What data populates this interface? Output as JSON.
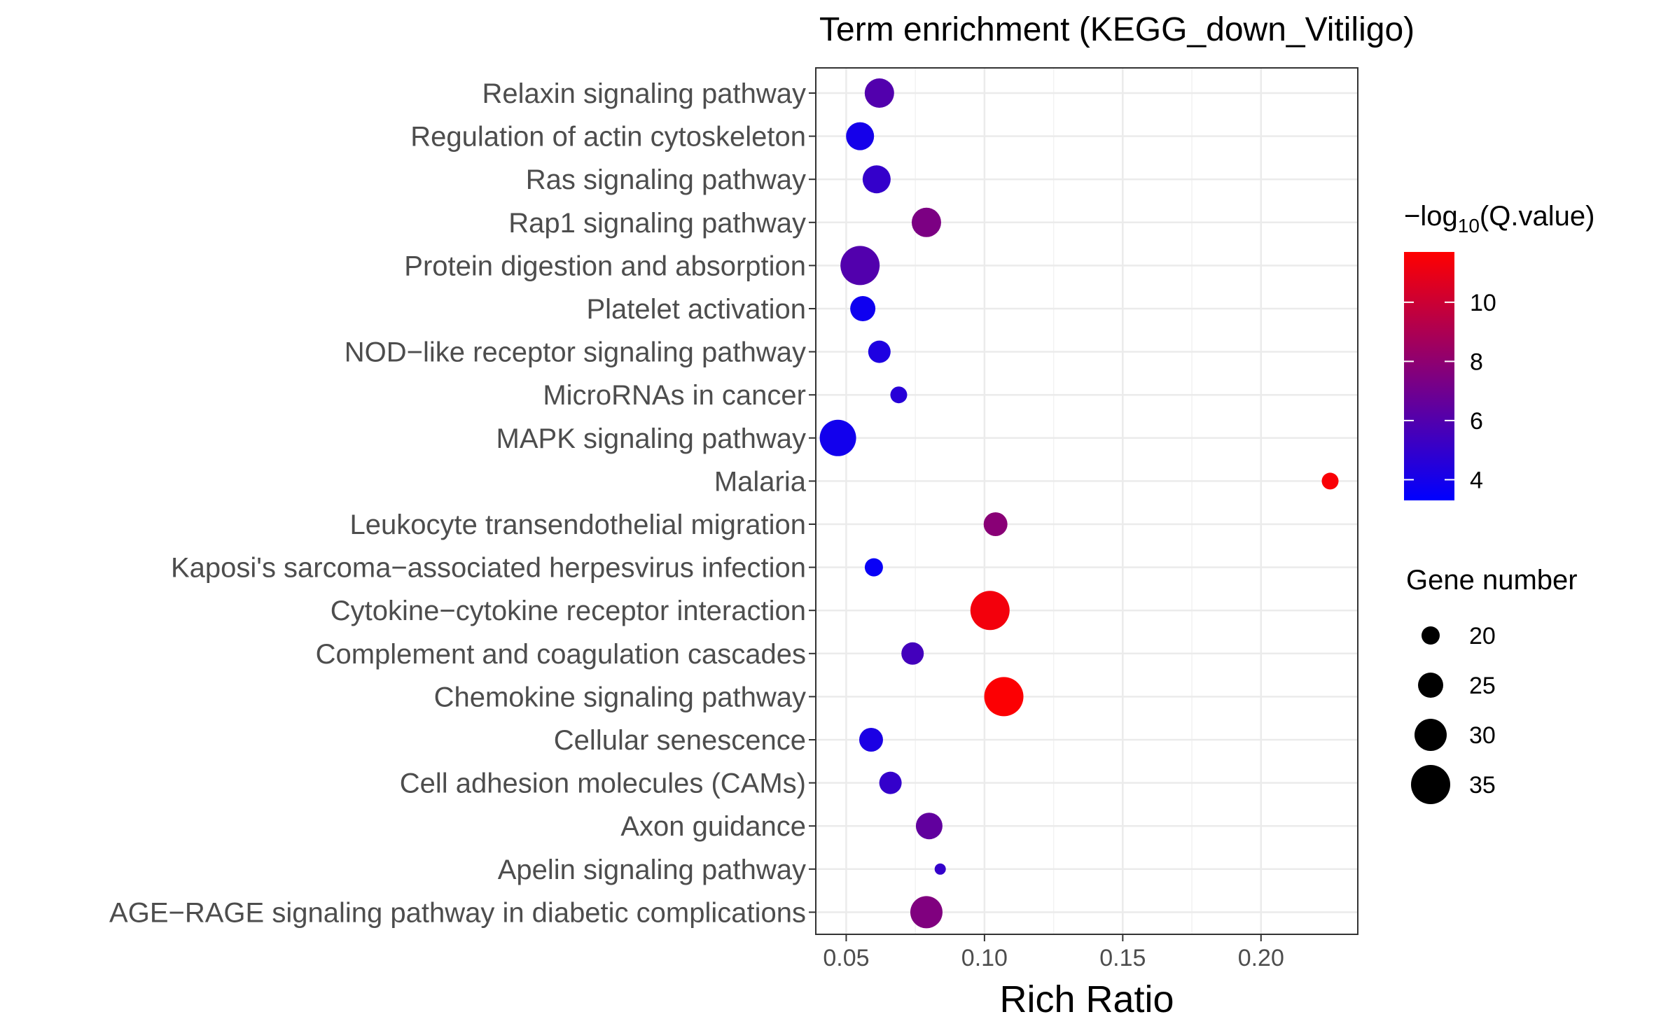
{
  "chart_data": {
    "type": "scatter",
    "title": "Term enrichment (KEGG_down_Vitiligo)",
    "xlabel": "Rich Ratio",
    "ylabel": "",
    "xlim": [
      0.039,
      0.235
    ],
    "xticks": [
      0.05,
      0.1,
      0.15,
      0.2
    ],
    "xtick_labels": [
      "0.05",
      "0.10",
      "0.15",
      "0.20"
    ],
    "grid": true,
    "categories": [
      "Relaxin signaling pathway",
      "Regulation of actin cytoskeleton",
      "Ras signaling pathway",
      "Rap1 signaling pathway",
      "Protein digestion and absorption",
      "Platelet activation",
      "NOD−like receptor signaling pathway",
      "MicroRNAs in cancer",
      "MAPK signaling pathway",
      "Malaria",
      "Leukocyte transendothelial migration",
      "Kaposi's sarcoma−associated herpesvirus infection",
      "Cytokine−cytokine receptor interaction",
      "Complement and coagulation cascades",
      "Chemokine signaling pathway",
      "Cellular senescence",
      "Cell adhesion molecules (CAMs)",
      "Axon guidance",
      "Apelin signaling pathway",
      "AGE−RAGE signaling pathway in diabetic complications"
    ],
    "points": [
      {
        "term": "Relaxin signaling pathway",
        "rich_ratio": 0.062,
        "gene_number": 28,
        "neg_log10_q": 6.0
      },
      {
        "term": "Regulation of actin cytoskeleton",
        "rich_ratio": 0.055,
        "gene_number": 27,
        "neg_log10_q": 4.0
      },
      {
        "term": "Ras signaling pathway",
        "rich_ratio": 0.061,
        "gene_number": 27,
        "neg_log10_q": 5.0
      },
      {
        "term": "Rap1 signaling pathway",
        "rich_ratio": 0.079,
        "gene_number": 28,
        "neg_log10_q": 7.4
      },
      {
        "term": "Protein digestion and absorption",
        "rich_ratio": 0.055,
        "gene_number": 35,
        "neg_log10_q": 6.0
      },
      {
        "term": "Platelet activation",
        "rich_ratio": 0.056,
        "gene_number": 25,
        "neg_log10_q": 3.8
      },
      {
        "term": "NOD−like receptor signaling pathway",
        "rich_ratio": 0.062,
        "gene_number": 23,
        "neg_log10_q": 4.3
      },
      {
        "term": "MicroRNAs in cancer",
        "rich_ratio": 0.069,
        "gene_number": 19,
        "neg_log10_q": 4.6
      },
      {
        "term": "MAPK signaling pathway",
        "rich_ratio": 0.047,
        "gene_number": 33,
        "neg_log10_q": 3.9
      },
      {
        "term": "Malaria",
        "rich_ratio": 0.225,
        "gene_number": 19,
        "neg_log10_q": 11.5
      },
      {
        "term": "Leukocyte transendothelial migration",
        "rich_ratio": 0.104,
        "gene_number": 24,
        "neg_log10_q": 7.8
      },
      {
        "term": "Kaposi's sarcoma−associated herpesvirus infection",
        "rich_ratio": 0.06,
        "gene_number": 20,
        "neg_log10_q": 3.6
      },
      {
        "term": "Cytokine−cytokine receptor interaction",
        "rich_ratio": 0.102,
        "gene_number": 35,
        "neg_log10_q": 11.3
      },
      {
        "term": "Complement and coagulation cascades",
        "rich_ratio": 0.074,
        "gene_number": 23,
        "neg_log10_q": 5.5
      },
      {
        "term": "Chemokine signaling pathway",
        "rich_ratio": 0.107,
        "gene_number": 35,
        "neg_log10_q": 11.6
      },
      {
        "term": "Cellular senescence",
        "rich_ratio": 0.059,
        "gene_number": 24,
        "neg_log10_q": 4.2
      },
      {
        "term": "Cell adhesion molecules (CAMs)",
        "rich_ratio": 0.066,
        "gene_number": 23,
        "neg_log10_q": 5.0
      },
      {
        "term": "Axon guidance",
        "rich_ratio": 0.08,
        "gene_number": 26,
        "neg_log10_q": 6.5
      },
      {
        "term": "Apelin signaling pathway",
        "rich_ratio": 0.084,
        "gene_number": 15,
        "neg_log10_q": 5.0
      },
      {
        "term": "AGE−RAGE signaling pathway in diabetic complications",
        "rich_ratio": 0.079,
        "gene_number": 30,
        "neg_log10_q": 7.5
      }
    ],
    "color_legend": {
      "title_prefix": "−log",
      "title_subscript": "10",
      "title_suffix": "(Q.value)",
      "min": 3.3,
      "max": 11.7,
      "ticks": [
        4,
        6,
        8,
        10
      ],
      "tick_labels": [
        "4",
        "6",
        "8",
        "10"
      ],
      "low_color": "#0000FF",
      "high_color": "#FF0000"
    },
    "size_legend": {
      "title": "Gene number",
      "values": [
        20,
        25,
        30,
        35
      ],
      "labels": [
        "20",
        "25",
        "30",
        "35"
      ],
      "min": 15,
      "max": 35
    },
    "legend_placement": "right"
  }
}
